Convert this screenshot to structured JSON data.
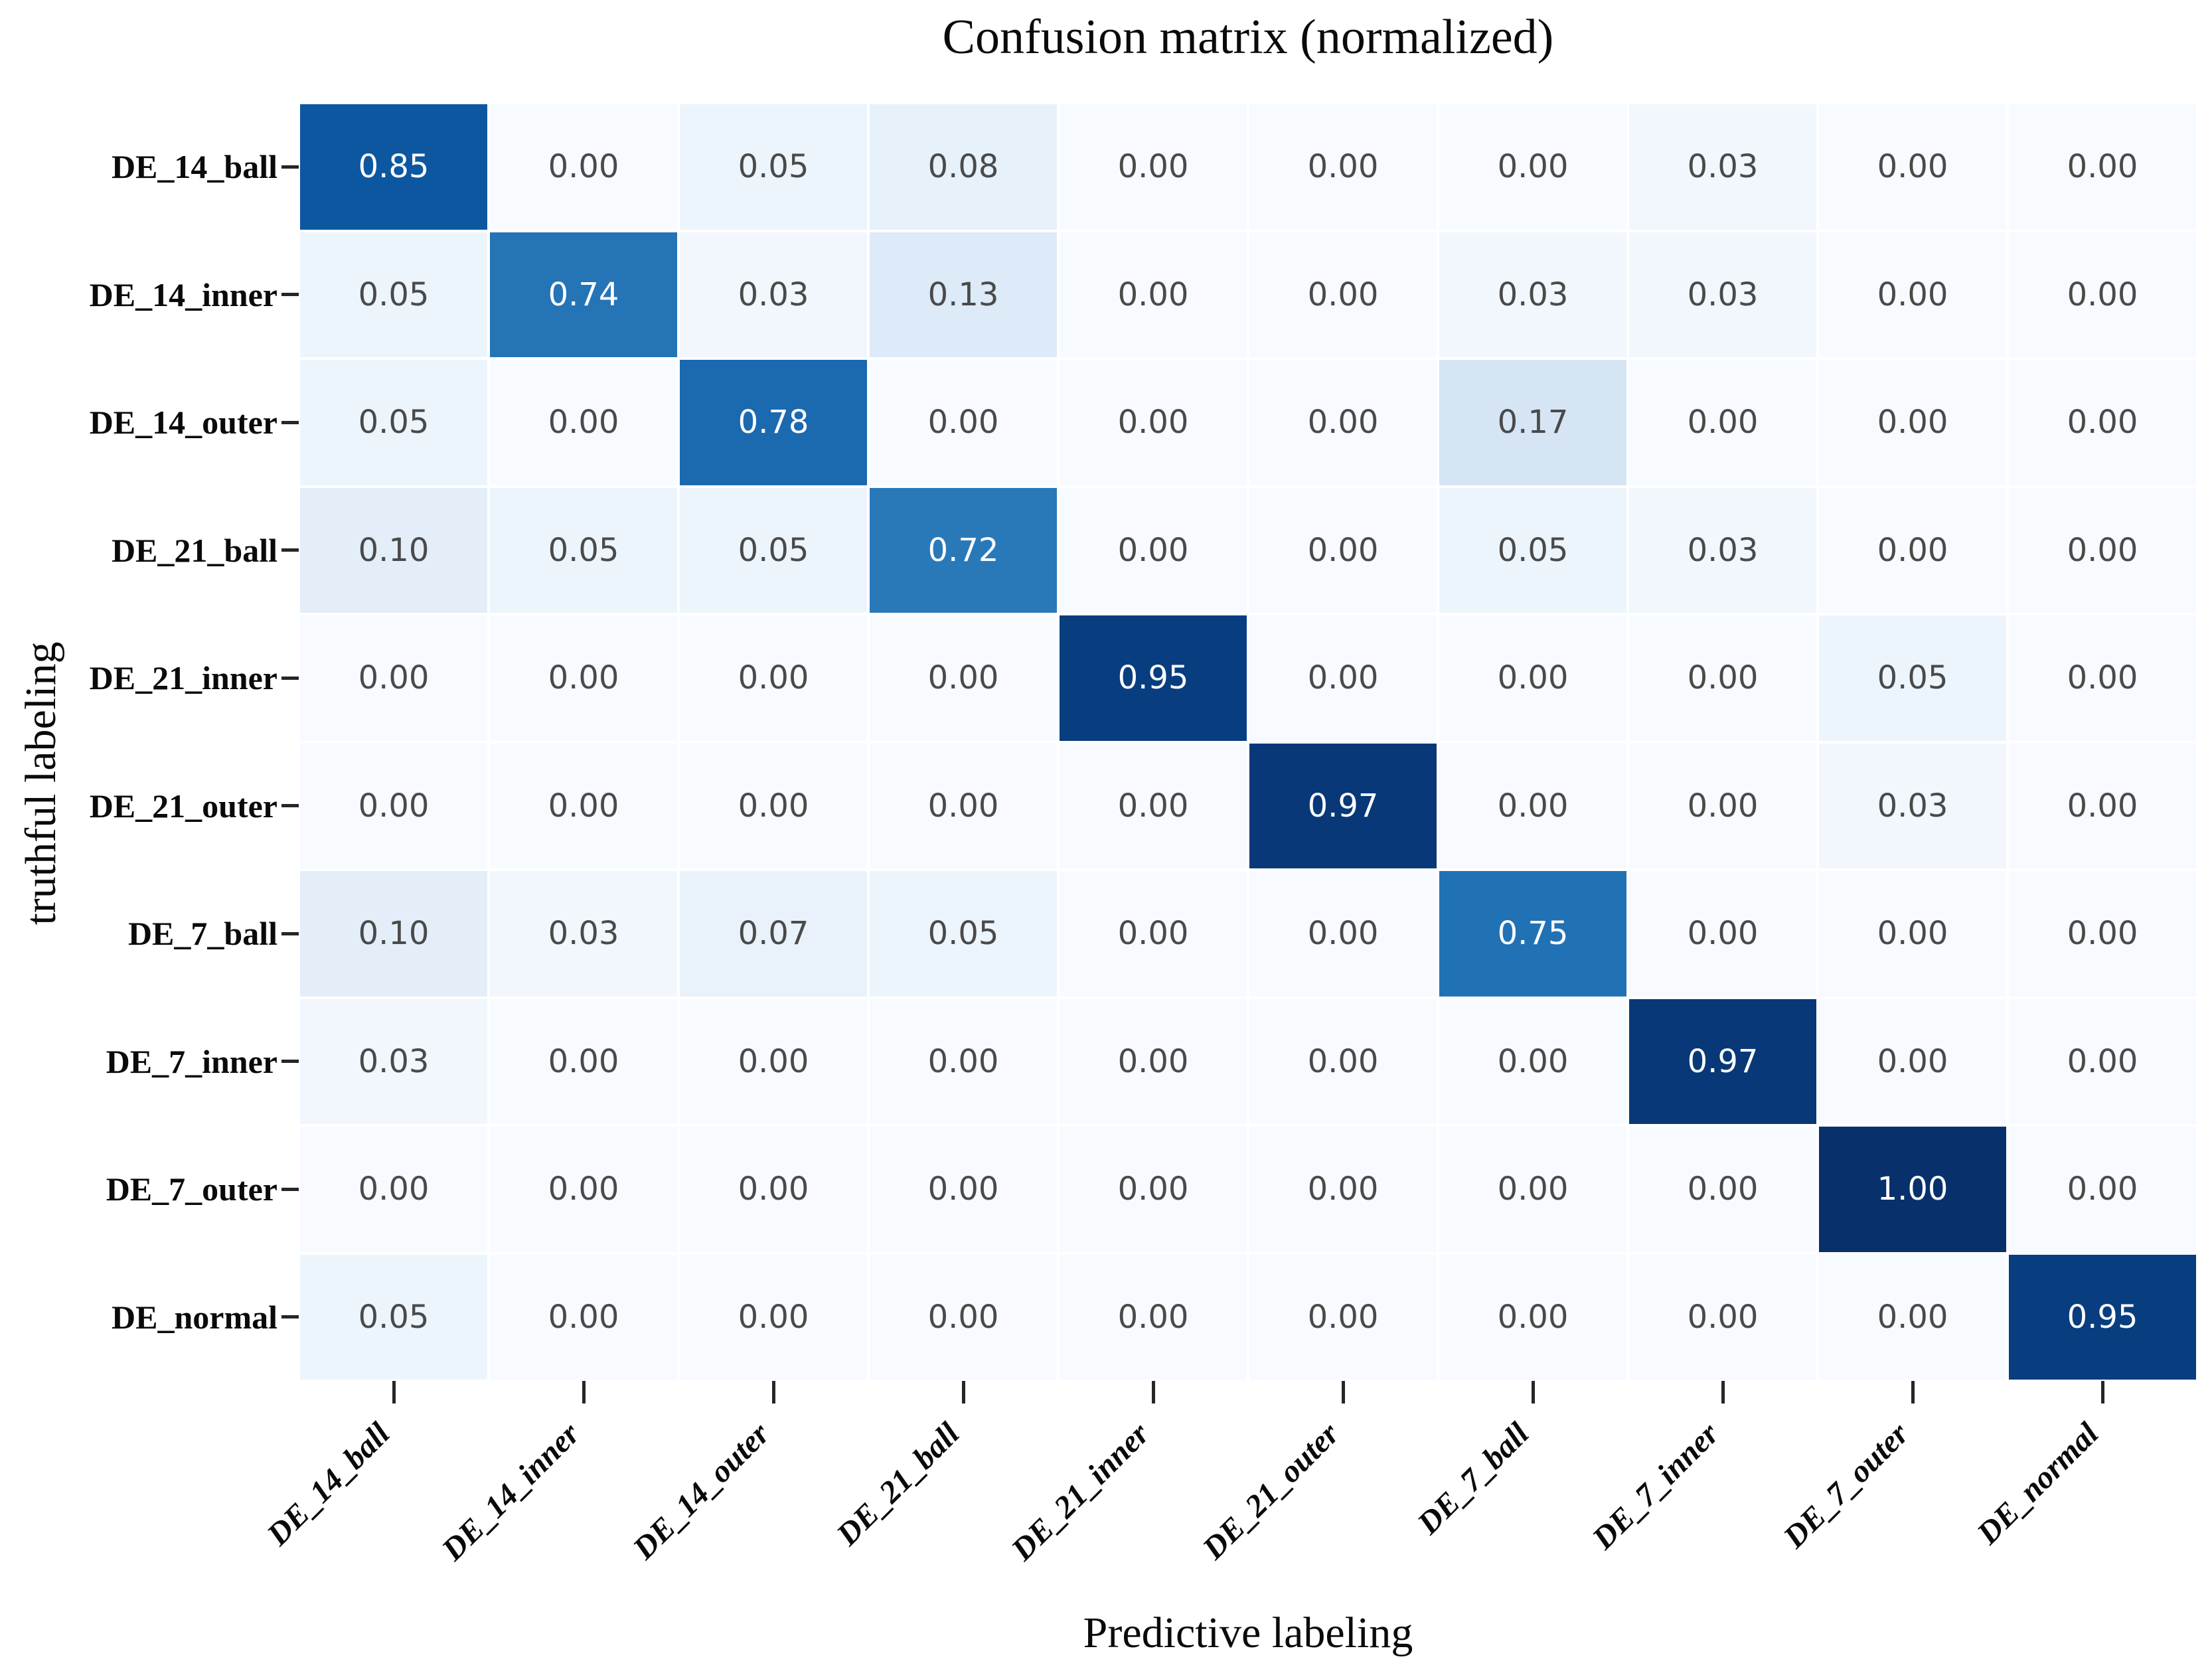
{
  "chart_data": {
    "type": "heatmap",
    "title": "Confusion matrix (normalized)",
    "xlabel": "Predictive labeling",
    "ylabel": "truthful labeling",
    "x_categories": [
      "DE_14_ball",
      "DE_14_inner",
      "DE_14_outer",
      "DE_21_ball",
      "DE_21_inner",
      "DE_21_outer",
      "DE_7_ball",
      "DE_7_inner",
      "DE_7_outer",
      "DE_normal"
    ],
    "y_categories": [
      "DE_14_ball",
      "DE_14_inner",
      "DE_14_outer",
      "DE_21_ball",
      "DE_21_inner",
      "DE_21_outer",
      "DE_7_ball",
      "DE_7_inner",
      "DE_7_outer",
      "DE_normal"
    ],
    "matrix": [
      [
        0.85,
        0.0,
        0.05,
        0.08,
        0.0,
        0.0,
        0.0,
        0.03,
        0.0,
        0.0
      ],
      [
        0.05,
        0.74,
        0.03,
        0.13,
        0.0,
        0.0,
        0.03,
        0.03,
        0.0,
        0.0
      ],
      [
        0.05,
        0.0,
        0.78,
        0.0,
        0.0,
        0.0,
        0.17,
        0.0,
        0.0,
        0.0
      ],
      [
        0.1,
        0.05,
        0.05,
        0.72,
        0.0,
        0.0,
        0.05,
        0.03,
        0.0,
        0.0
      ],
      [
        0.0,
        0.0,
        0.0,
        0.0,
        0.95,
        0.0,
        0.0,
        0.0,
        0.05,
        0.0
      ],
      [
        0.0,
        0.0,
        0.0,
        0.0,
        0.0,
        0.97,
        0.0,
        0.0,
        0.03,
        0.0
      ],
      [
        0.1,
        0.03,
        0.07,
        0.05,
        0.0,
        0.0,
        0.75,
        0.0,
        0.0,
        0.0
      ],
      [
        0.03,
        0.0,
        0.0,
        0.0,
        0.0,
        0.0,
        0.0,
        0.97,
        0.0,
        0.0
      ],
      [
        0.0,
        0.0,
        0.0,
        0.0,
        0.0,
        0.0,
        0.0,
        0.0,
        1.0,
        0.0
      ],
      [
        0.05,
        0.0,
        0.0,
        0.0,
        0.0,
        0.0,
        0.0,
        0.0,
        0.0,
        0.95
      ]
    ],
    "value_format": "0.00",
    "value_range": [
      0,
      1
    ],
    "grid": false,
    "legend": "none",
    "colormap": {
      "name": "Blues",
      "stops": [
        {
          "t": 0.0,
          "c": "#f7fbff"
        },
        {
          "t": 0.125,
          "c": "#deebf7"
        },
        {
          "t": 0.25,
          "c": "#c6dbef"
        },
        {
          "t": 0.375,
          "c": "#9ecae1"
        },
        {
          "t": 0.5,
          "c": "#6baed6"
        },
        {
          "t": 0.625,
          "c": "#4292c6"
        },
        {
          "t": 0.75,
          "c": "#2171b5"
        },
        {
          "t": 0.875,
          "c": "#08519c"
        },
        {
          "t": 1.0,
          "c": "#08306b"
        }
      ]
    },
    "cell_text_colors": {
      "light_cells": "#4a4a4a",
      "dark_cells": "#fcfdff",
      "white_text_threshold": 0.5
    },
    "tick_color": "#262626"
  }
}
